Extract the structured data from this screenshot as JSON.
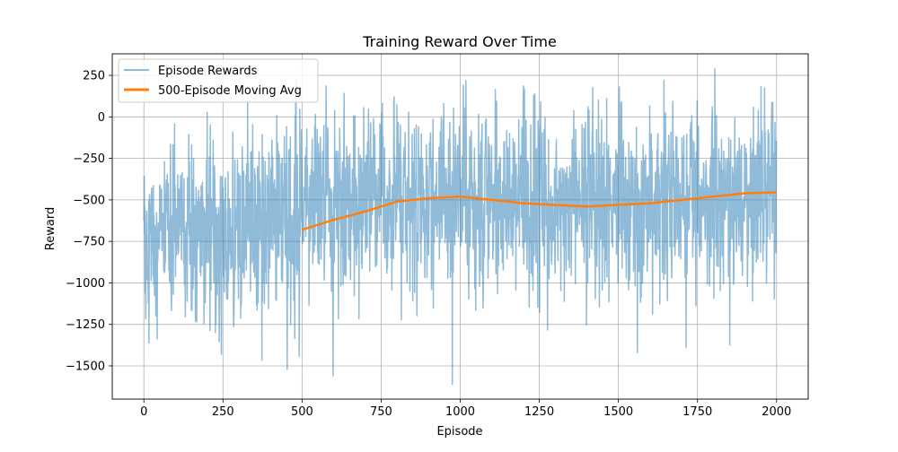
{
  "chart_data": {
    "type": "line",
    "title": "Training Reward Over Time",
    "xlabel": "Episode",
    "ylabel": "Reward",
    "xlim": [
      -100,
      2100
    ],
    "ylim": [
      -1700,
      380
    ],
    "xticks": [
      0,
      250,
      500,
      750,
      1000,
      1250,
      1500,
      1750,
      2000
    ],
    "yticks": [
      -1500,
      -1250,
      -1000,
      -750,
      -500,
      -250,
      0,
      250
    ],
    "grid": true,
    "legend_position": "upper-left",
    "colors": {
      "raw": "#1f77b4",
      "avg": "#ff7f0e",
      "grid": "#b0b0b0"
    },
    "series": [
      {
        "name": "Episode Rewards",
        "color": "#1f77b4",
        "alpha": 0.5,
        "x_start": 0,
        "x_step": 1,
        "count": 2000,
        "baseline": [
          [
            0,
            -760
          ],
          [
            250,
            -690
          ],
          [
            500,
            -590
          ],
          [
            750,
            -510
          ],
          [
            1000,
            -480
          ],
          [
            1250,
            -530
          ],
          [
            1500,
            -520
          ],
          [
            1750,
            -470
          ],
          [
            2000,
            -450
          ]
        ],
        "spread": 330,
        "y_min": -1610,
        "y_max": 290,
        "notable_points": [
          [
            975,
            -1610
          ],
          [
            1010,
            190
          ],
          [
            1805,
            290
          ],
          [
            1560,
            -1420
          ],
          [
            245,
            -1430
          ]
        ]
      },
      {
        "name": "500-Episode Moving Avg",
        "color": "#ff7f0e",
        "x": [
          500,
          600,
          700,
          800,
          900,
          1000,
          1100,
          1200,
          1300,
          1400,
          1500,
          1600,
          1700,
          1800,
          1900,
          2000
        ],
        "y": [
          -680,
          -620,
          -570,
          -510,
          -490,
          -480,
          -500,
          -520,
          -530,
          -540,
          -530,
          -520,
          -500,
          -480,
          -460,
          -455
        ]
      }
    ]
  }
}
